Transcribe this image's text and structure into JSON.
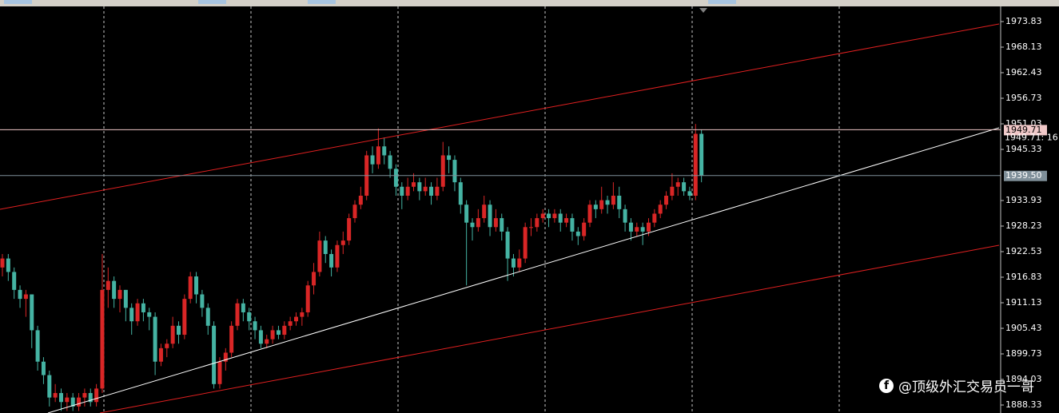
{
  "chart_data": {
    "type": "candlestick",
    "up_color": "#d92626",
    "down_color": "#45b3a3",
    "ylim": [
      1886.55,
      1976.86
    ],
    "yticks": [
      1973.83,
      1968.13,
      1962.43,
      1956.73,
      1951.03,
      1945.33,
      1933.93,
      1928.23,
      1922.53,
      1916.83,
      1911.13,
      1905.43,
      1899.73,
      1894.03,
      1888.33
    ],
    "grid": true,
    "levels": [
      {
        "value": 1949.71,
        "label": "1949.71",
        "color": "#f0c8c8"
      },
      {
        "value": 1939.5,
        "label": "1939.50",
        "color": "#7f8f99"
      }
    ],
    "annotation": "1949.71: 16",
    "candles": [
      [
        1919,
        1922,
        1917,
        1921
      ],
      [
        1921,
        1922,
        1916,
        1918
      ],
      [
        1918,
        1919,
        1912,
        1914
      ],
      [
        1914,
        1915,
        1910,
        1912
      ],
      [
        1912,
        1914,
        1908,
        1913
      ],
      [
        1913,
        1913,
        1901,
        1905
      ],
      [
        1905,
        1906,
        1896,
        1898
      ],
      [
        1898,
        1899,
        1893,
        1895
      ],
      [
        1895,
        1896,
        1888,
        1890
      ],
      [
        1890,
        1893,
        1889,
        1891
      ],
      [
        1891,
        1892,
        1887,
        1889
      ],
      [
        1889,
        1891,
        1887,
        1890
      ],
      [
        1890,
        1891,
        1887,
        1888
      ],
      [
        1888,
        1891,
        1887,
        1890
      ],
      [
        1890,
        1892,
        1888,
        1891
      ],
      [
        1891,
        1892,
        1888,
        1889
      ],
      [
        1889,
        1893,
        1888,
        1892
      ],
      [
        1892,
        1922,
        1891,
        1914
      ],
      [
        1914,
        1919,
        1910,
        1916
      ],
      [
        1916,
        1917,
        1910,
        1912
      ],
      [
        1912,
        1915,
        1909,
        1914
      ],
      [
        1914,
        1914,
        1907,
        1910
      ],
      [
        1910,
        1911,
        1904,
        1907
      ],
      [
        1907,
        1912,
        1906,
        1911
      ],
      [
        1911,
        1912,
        1907,
        1909
      ],
      [
        1909,
        1910,
        1905,
        1908
      ],
      [
        1908,
        1909,
        1895,
        1898
      ],
      [
        1898,
        1902,
        1897,
        1901
      ],
      [
        1901,
        1903,
        1899,
        1902
      ],
      [
        1902,
        1908,
        1901,
        1906
      ],
      [
        1906,
        1907,
        1902,
        1904
      ],
      [
        1904,
        1913,
        1903,
        1912
      ],
      [
        1912,
        1918,
        1911,
        1917
      ],
      [
        1917,
        1918,
        1911,
        1913
      ],
      [
        1913,
        1914,
        1908,
        1910
      ],
      [
        1910,
        1911,
        1904,
        1906
      ],
      [
        1906,
        1907,
        1892,
        1893
      ],
      [
        1893,
        1899,
        1892,
        1898
      ],
      [
        1898,
        1901,
        1896,
        1900
      ],
      [
        1900,
        1907,
        1899,
        1906
      ],
      [
        1906,
        1912,
        1905,
        1911
      ],
      [
        1911,
        1912,
        1907,
        1909
      ],
      [
        1909,
        1910,
        1905,
        1907
      ],
      [
        1907,
        1908,
        1903,
        1905
      ],
      [
        1905,
        1906,
        1901,
        1902
      ],
      [
        1902,
        1904,
        1901,
        1903
      ],
      [
        1903,
        1906,
        1902,
        1905
      ],
      [
        1905,
        1906,
        1903,
        1904
      ],
      [
        1904,
        1907,
        1903,
        1906
      ],
      [
        1906,
        1908,
        1905,
        1907
      ],
      [
        1907,
        1909,
        1906,
        1908
      ],
      [
        1908,
        1910,
        1906,
        1909
      ],
      [
        1909,
        1916,
        1908,
        1915
      ],
      [
        1915,
        1920,
        1913,
        1918
      ],
      [
        1918,
        1927,
        1917,
        1925
      ],
      [
        1925,
        1926,
        1920,
        1922
      ],
      [
        1922,
        1923,
        1917,
        1919
      ],
      [
        1919,
        1925,
        1918,
        1924
      ],
      [
        1924,
        1927,
        1922,
        1925
      ],
      [
        1925,
        1931,
        1924,
        1930
      ],
      [
        1930,
        1934,
        1929,
        1933
      ],
      [
        1933,
        1937,
        1932,
        1935
      ],
      [
        1935,
        1945,
        1934,
        1944
      ],
      [
        1944,
        1946,
        1940,
        1942
      ],
      [
        1942,
        1950,
        1941,
        1946
      ],
      [
        1946,
        1948,
        1942,
        1944
      ],
      [
        1944,
        1945,
        1939,
        1941
      ],
      [
        1941,
        1942,
        1935,
        1937
      ],
      [
        1937,
        1938,
        1932,
        1935
      ],
      [
        1935,
        1939,
        1934,
        1937
      ],
      [
        1937,
        1940,
        1936,
        1938
      ],
      [
        1938,
        1939,
        1934,
        1936
      ],
      [
        1936,
        1939,
        1935,
        1937
      ],
      [
        1937,
        1938,
        1933,
        1935
      ],
      [
        1935,
        1939,
        1934,
        1937
      ],
      [
        1937,
        1947,
        1936,
        1944
      ],
      [
        1944,
        1946,
        1940,
        1943
      ],
      [
        1943,
        1944,
        1936,
        1938
      ],
      [
        1938,
        1939,
        1931,
        1933
      ],
      [
        1933,
        1934,
        1915,
        1929
      ],
      [
        1929,
        1930,
        1925,
        1928
      ],
      [
        1928,
        1932,
        1927,
        1930
      ],
      [
        1930,
        1935,
        1929,
        1933
      ],
      [
        1933,
        1934,
        1926,
        1928
      ],
      [
        1928,
        1932,
        1927,
        1930
      ],
      [
        1930,
        1931,
        1925,
        1927
      ],
      [
        1927,
        1928,
        1916,
        1921
      ],
      [
        1921,
        1922,
        1917,
        1919
      ],
      [
        1919,
        1923,
        1918,
        1921
      ],
      [
        1921,
        1929,
        1920,
        1928
      ],
      [
        1928,
        1930,
        1926,
        1928
      ],
      [
        1928,
        1931,
        1927,
        1930
      ],
      [
        1930,
        1932,
        1929,
        1931
      ],
      [
        1931,
        1932,
        1928,
        1930
      ],
      [
        1930,
        1932,
        1929,
        1931
      ],
      [
        1931,
        1932,
        1927,
        1929
      ],
      [
        1929,
        1931,
        1928,
        1930
      ],
      [
        1930,
        1931,
        1925,
        1927
      ],
      [
        1927,
        1928,
        1924,
        1926
      ],
      [
        1926,
        1930,
        1925,
        1929
      ],
      [
        1929,
        1934,
        1928,
        1933
      ],
      [
        1933,
        1934,
        1930,
        1932
      ],
      [
        1932,
        1937,
        1931,
        1934
      ],
      [
        1934,
        1935,
        1931,
        1933
      ],
      [
        1933,
        1938,
        1932,
        1935
      ],
      [
        1935,
        1937,
        1930,
        1932
      ],
      [
        1932,
        1933,
        1927,
        1929
      ],
      [
        1929,
        1930,
        1925,
        1927
      ],
      [
        1927,
        1929,
        1926,
        1928
      ],
      [
        1928,
        1929,
        1924,
        1927
      ],
      [
        1927,
        1930,
        1926,
        1929
      ],
      [
        1929,
        1932,
        1928,
        1931
      ],
      [
        1931,
        1934,
        1930,
        1933
      ],
      [
        1933,
        1936,
        1932,
        1935
      ],
      [
        1935,
        1940,
        1934,
        1937
      ],
      [
        1937,
        1939,
        1935,
        1938
      ],
      [
        1938,
        1939,
        1935,
        1936
      ],
      [
        1936,
        1937,
        1934,
        1935
      ],
      [
        1935,
        1951,
        1934,
        1948.8
      ],
      [
        1948.8,
        1949.7,
        1938,
        1939.5
      ]
    ]
  },
  "watermark": "@顶级外汇交易员一哥"
}
